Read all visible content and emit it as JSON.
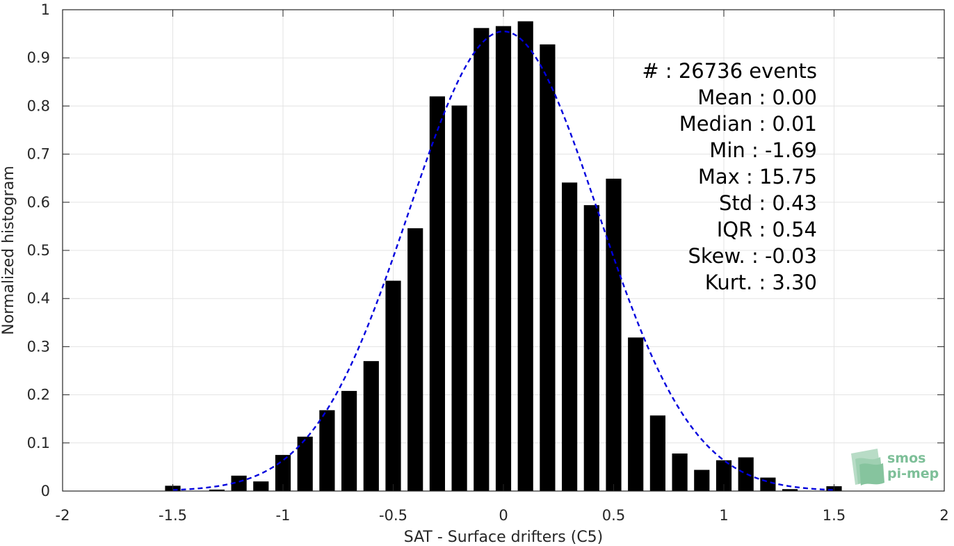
{
  "chart_data": {
    "type": "bar",
    "xlabel": "SAT - Surface drifters (C5)",
    "ylabel": "Normalized histogram",
    "xlim": [
      -2,
      2
    ],
    "ylim": [
      0,
      1
    ],
    "xticks": [
      -2,
      -1.5,
      -1,
      -0.5,
      0,
      0.5,
      1,
      1.5,
      2
    ],
    "xtick_labels": [
      "-2",
      "-1.5",
      "-1",
      "-0.5",
      "0",
      "0.5",
      "1",
      "1.5",
      "2"
    ],
    "yticks": [
      0,
      0.1,
      0.2,
      0.3,
      0.4,
      0.5,
      0.6,
      0.7,
      0.8,
      0.9,
      1
    ],
    "ytick_labels": [
      "0",
      "0.1",
      "0.2",
      "0.3",
      "0.4",
      "0.5",
      "0.6",
      "0.7",
      "0.8",
      "0.9",
      "1"
    ],
    "grid": true,
    "bar_color": "#000000",
    "fit_color": "#0000dd",
    "bar_width": 0.07,
    "bars": {
      "x": [
        -1.5,
        -1.4,
        -1.3,
        -1.2,
        -1.1,
        -1.0,
        -0.9,
        -0.8,
        -0.7,
        -0.6,
        -0.5,
        -0.4,
        -0.3,
        -0.2,
        -0.1,
        0.0,
        0.1,
        0.2,
        0.3,
        0.4,
        0.5,
        0.6,
        0.7,
        0.8,
        0.9,
        1.0,
        1.1,
        1.2,
        1.3,
        1.4,
        1.5
      ],
      "values": [
        0.011,
        0.0,
        0.003,
        0.032,
        0.02,
        0.075,
        0.113,
        0.168,
        0.208,
        0.27,
        0.437,
        0.546,
        0.82,
        0.801,
        0.962,
        0.966,
        0.976,
        0.928,
        0.641,
        0.594,
        0.649,
        0.319,
        0.157,
        0.078,
        0.044,
        0.064,
        0.07,
        0.028,
        0.004,
        0.0,
        0.01
      ]
    },
    "fit": {
      "type": "gaussian",
      "peak": 0.955,
      "mean": 0.0,
      "std": 0.43,
      "x_range": [
        -1.5,
        1.5
      ],
      "style": "dashed"
    }
  },
  "stats": [
    {
      "label": "#  ",
      "value": ": 26736 events"
    },
    {
      "label": "Mean ",
      "value": ": 0.00"
    },
    {
      "label": "Median ",
      "value": ": 0.01"
    },
    {
      "label": "Min ",
      "value": ": -1.69"
    },
    {
      "label": "Max ",
      "value": ": 15.75"
    },
    {
      "label": "Std ",
      "value": ": 0.43"
    },
    {
      "label": "IQR ",
      "value": ": 0.54"
    },
    {
      "label": "Skew. ",
      "value": ": -0.03"
    },
    {
      "label": "Kurt. ",
      "value": ": 3.30"
    }
  ],
  "watermark": {
    "line1": "smos",
    "line2": "pi-mep",
    "color": "#7dbf98"
  }
}
